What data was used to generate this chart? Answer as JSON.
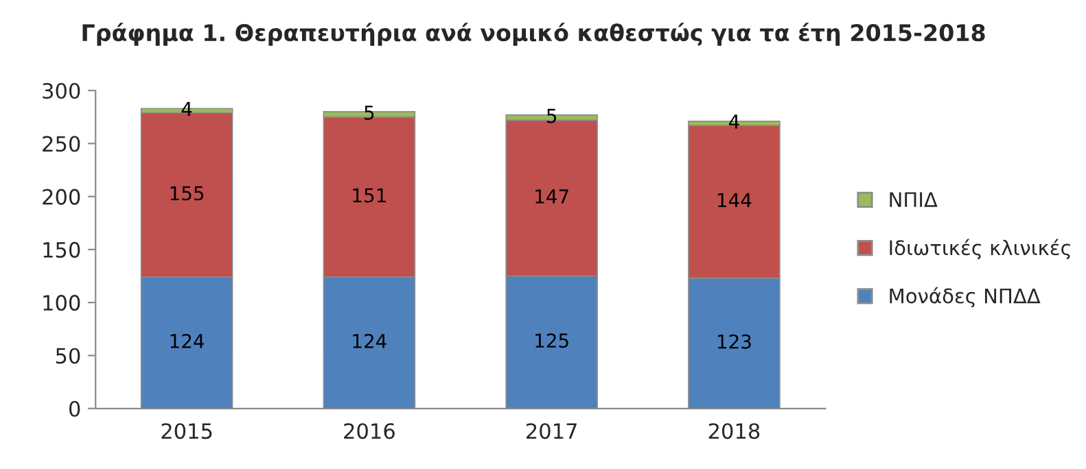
{
  "chart_data": {
    "type": "bar",
    "title": "Γράφημα 1. Θεραπευτήρια ανά νομικό καθεστώς για τα έτη 2015-2018",
    "categories": [
      "2015",
      "2016",
      "2017",
      "2018"
    ],
    "stacked": true,
    "data_labels": true,
    "legend": "right",
    "grid": false,
    "ylim": [
      0,
      300
    ],
    "yticks": [
      0,
      50,
      100,
      150,
      200,
      250,
      300
    ],
    "series": [
      {
        "name": "Μονάδες ΝΠΔΔ",
        "color": "#4f81bd",
        "values": [
          124,
          124,
          125,
          123
        ]
      },
      {
        "name": "Ιδιωτικές κλινικές",
        "color": "#c0504d",
        "values": [
          155,
          151,
          147,
          144
        ]
      },
      {
        "name": "ΝΠΙΔ",
        "color": "#9bbb59",
        "values": [
          4,
          5,
          5,
          4
        ]
      }
    ]
  }
}
